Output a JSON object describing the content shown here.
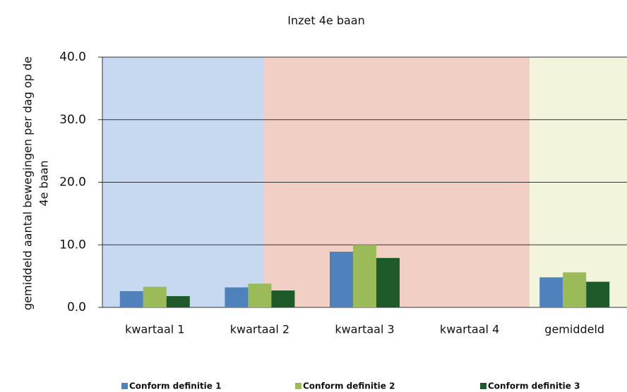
{
  "chart_data": {
    "type": "bar",
    "title": "Inzet 4e baan",
    "y_label": [
      "gemiddeld aantal bewegingen per dag op de",
      "4e baan"
    ],
    "categories": [
      "kwartaal 1",
      "kwartaal 2",
      "kwartaal 3",
      "kwartaal 4",
      "gemiddeld"
    ],
    "series": [
      {
        "name": "Conform definitie 1",
        "color": "#4f81bd",
        "values": [
          2.6,
          3.2,
          8.9,
          0,
          4.8
        ]
      },
      {
        "name": "Conform definitie 2",
        "color": "#9bbb59",
        "values": [
          3.3,
          3.8,
          10.0,
          0,
          5.6
        ]
      },
      {
        "name": "Conform definitie 3",
        "color": "#1e5a2a",
        "values": [
          1.8,
          2.7,
          7.9,
          0,
          4.1
        ]
      }
    ],
    "ylim": [
      0,
      40
    ],
    "yticks": [
      {
        "value": 0,
        "label": "0.0"
      },
      {
        "value": 10,
        "label": "10.0"
      },
      {
        "value": 20,
        "label": "20.0"
      },
      {
        "value": 30,
        "label": "30.0"
      },
      {
        "value": 40,
        "label": "40.0"
      }
    ],
    "grid": true,
    "legend": "bottom"
  }
}
